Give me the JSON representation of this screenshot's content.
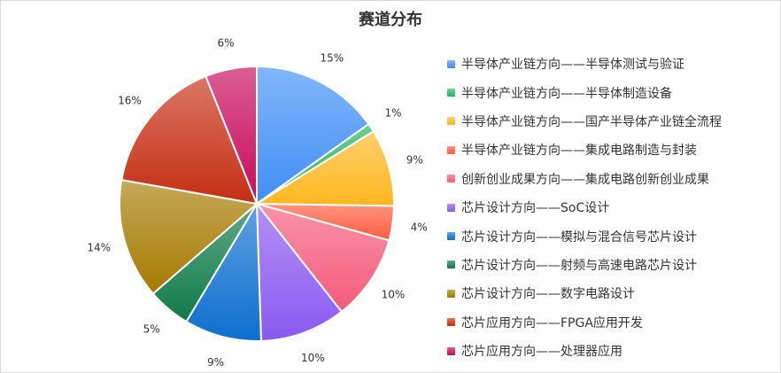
{
  "chart_data": {
    "type": "pie",
    "title": "赛道分布",
    "legend_position": "right",
    "slices": [
      {
        "label": "半导体产业链方向——半导体测试与验证",
        "value": 15,
        "display": "15%",
        "color": "#3f8ef5"
      },
      {
        "label": "半导体产业链方向——半导体制造设备",
        "value": 1,
        "display": "1%",
        "color": "#22b35e"
      },
      {
        "label": "半导体产业链方向——国产半导体产业链全流程",
        "value": 9,
        "display": "9%",
        "color": "#ffb71e"
      },
      {
        "label": "半导体产业链方向——集成电路制造与封装",
        "value": 4,
        "display": "4%",
        "color": "#ff5c3d"
      },
      {
        "label": "创新创业成果方向——集成电路创新创业成果",
        "value": 10,
        "display": "10%",
        "color": "#f55a7a"
      },
      {
        "label": "芯片设计方向——SoC设计",
        "value": 10,
        "display": "10%",
        "color": "#8a58f0"
      },
      {
        "label": "芯片设计方向——模拟与混合信号芯片设计",
        "value": 9,
        "display": "9%",
        "color": "#0c6fcf"
      },
      {
        "label": "芯片设计方向——射频与高速电路芯片设计",
        "value": 5,
        "display": "5%",
        "color": "#0e7a48"
      },
      {
        "label": "芯片设计方向——数字电路设计",
        "value": 14,
        "display": "14%",
        "color": "#a67a00"
      },
      {
        "label": "芯片应用方向——FPGA应用开发",
        "value": 16,
        "display": "16%",
        "color": "#c52d12"
      },
      {
        "label": "芯片应用方向——处理器应用",
        "value": 6,
        "display": "6%",
        "color": "#c8085a"
      }
    ]
  }
}
